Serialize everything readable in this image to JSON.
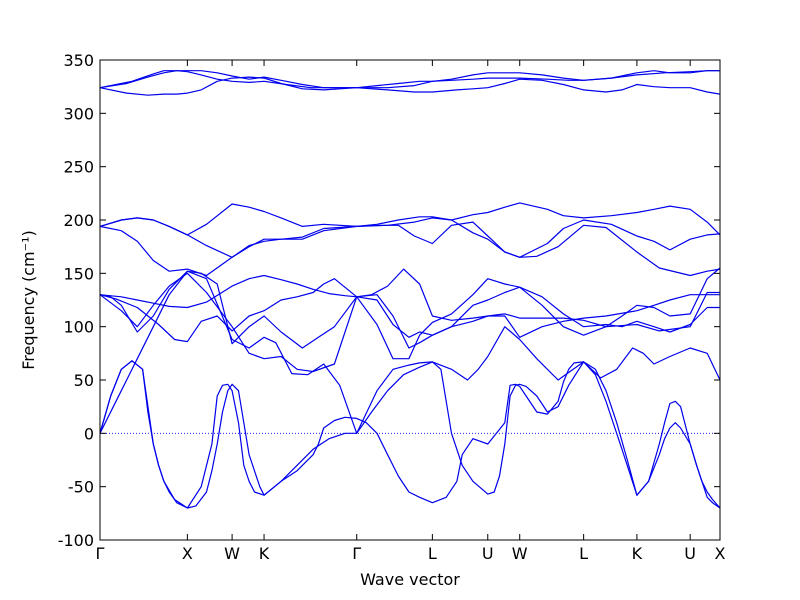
{
  "chart_data": {
    "type": "line",
    "title": "",
    "xlabel": "Wave vector",
    "ylabel": "Frequency (cm⁻¹)",
    "ylim": [
      -100,
      350
    ],
    "xlim": [
      0,
      5.82
    ],
    "yticks": [
      -100,
      -50,
      0,
      50,
      100,
      150,
      200,
      250,
      300,
      350
    ],
    "xticks": [
      {
        "label": "Γ",
        "x": 0
      },
      {
        "label": "X",
        "x": 0.82
      },
      {
        "label": "W",
        "x": 1.24
      },
      {
        "label": "K",
        "x": 1.54
      },
      {
        "label": "Γ",
        "x": 2.41
      },
      {
        "label": "L",
        "x": 3.12
      },
      {
        "label": "U",
        "x": 3.64
      },
      {
        "label": "W",
        "x": 3.94
      },
      {
        "label": "L",
        "x": 4.54
      },
      {
        "label": "K",
        "x": 5.04
      },
      {
        "label": "U",
        "x": 5.54
      },
      {
        "label": "X",
        "x": 5.82
      }
    ],
    "zero_line": true,
    "grid": false,
    "line_color": "#0000ee",
    "zero_line_color": "#0000ee",
    "series": [
      {
        "x": [
          0,
          0.3,
          0.5,
          0.6,
          0.72,
          0.82,
          0.95,
          1.1,
          1.24,
          1.4,
          1.54,
          1.75,
          1.98,
          2.2,
          2.41,
          2.6,
          2.8,
          3.0,
          3.12,
          3.3,
          3.5,
          3.64,
          3.8,
          3.94,
          4.2,
          4.4,
          4.54,
          4.8,
          5.04,
          5.3,
          5.54,
          5.7,
          5.82
        ],
        "y": [
          324,
          330,
          337,
          340,
          340,
          339,
          336,
          332,
          330,
          329,
          330,
          327,
          324,
          324,
          324,
          326,
          328,
          330,
          330,
          331,
          332,
          333,
          333,
          333,
          332,
          331,
          331,
          333,
          336,
          338,
          339,
          340,
          340
        ]
      },
      {
        "x": [
          0,
          0.25,
          0.45,
          0.6,
          0.72,
          0.82,
          0.95,
          1.1,
          1.24,
          1.4,
          1.54,
          1.7,
          1.9,
          2.1,
          2.41,
          2.7,
          2.95,
          3.12,
          3.3,
          3.5,
          3.64,
          3.8,
          3.94,
          4.15,
          4.35,
          4.54,
          4.8,
          5.04,
          5.2,
          5.35,
          5.54,
          5.7,
          5.82
        ],
        "y": [
          324,
          328,
          334,
          338,
          340,
          340,
          340,
          338,
          335,
          332,
          334,
          331,
          327,
          324,
          324,
          324,
          326,
          330,
          332,
          336,
          338,
          338,
          338,
          336,
          333,
          331,
          333,
          338,
          340,
          338,
          338,
          340,
          340
        ]
      },
      {
        "x": [
          0,
          0.25,
          0.45,
          0.6,
          0.72,
          0.82,
          0.95,
          1.1,
          1.24,
          1.4,
          1.54,
          1.7,
          1.9,
          2.1,
          2.41,
          2.7,
          2.95,
          3.12,
          3.35,
          3.5,
          3.64,
          3.8,
          3.94,
          4.15,
          4.35,
          4.54,
          4.75,
          4.9,
          5.04,
          5.2,
          5.35,
          5.54,
          5.7,
          5.82
        ],
        "y": [
          324,
          319,
          317,
          318,
          318,
          319,
          322,
          330,
          333,
          334,
          333,
          328,
          323,
          322,
          324,
          322,
          320,
          320,
          322,
          323,
          324,
          328,
          332,
          331,
          327,
          322,
          320,
          322,
          327,
          325,
          324,
          324,
          320,
          318
        ]
      },
      {
        "x": [
          0,
          0.2,
          0.35,
          0.5,
          0.65,
          0.82,
          1.0,
          1.24,
          1.4,
          1.54,
          1.7,
          1.9,
          2.1,
          2.41,
          2.6,
          2.8,
          3.0,
          3.12,
          3.3,
          3.5,
          3.64,
          3.8,
          3.94,
          4.2,
          4.35,
          4.54,
          4.8,
          5.04,
          5.2,
          5.35,
          5.54,
          5.7,
          5.82
        ],
        "y": [
          194,
          200,
          202,
          200,
          194,
          186,
          196,
          215,
          212,
          208,
          202,
          194,
          196,
          194,
          196,
          200,
          203,
          203,
          200,
          205,
          207,
          212,
          216,
          210,
          204,
          202,
          204,
          207,
          210,
          213,
          210,
          198,
          186
        ]
      },
      {
        "x": [
          0,
          0.2,
          0.35,
          0.5,
          0.65,
          0.82,
          1.0,
          1.24,
          1.4,
          1.54,
          1.7,
          1.9,
          2.1,
          2.41,
          2.7,
          2.95,
          3.12,
          3.3,
          3.5,
          3.64,
          3.8,
          3.94,
          4.2,
          4.35,
          4.54,
          4.8,
          5.04,
          5.2,
          5.35,
          5.54,
          5.7,
          5.82
        ],
        "y": [
          194,
          200,
          202,
          200,
          194,
          186,
          176,
          165,
          175,
          182,
          182,
          184,
          192,
          194,
          195,
          198,
          202,
          200,
          188,
          182,
          170,
          165,
          178,
          192,
          200,
          196,
          185,
          180,
          172,
          182,
          186,
          187
        ]
      },
      {
        "x": [
          0,
          0.2,
          0.35,
          0.5,
          0.65,
          0.82,
          1.0,
          1.24,
          1.4,
          1.54,
          1.7,
          1.9,
          2.1,
          2.41,
          2.6,
          2.8,
          2.95,
          3.12,
          3.3,
          3.5,
          3.64,
          3.8,
          3.94,
          4.1,
          4.3,
          4.54,
          4.75,
          5.04,
          5.25,
          5.54,
          5.7,
          5.82
        ],
        "y": [
          194,
          190,
          180,
          162,
          152,
          154,
          148,
          165,
          176,
          180,
          182,
          182,
          190,
          194,
          195,
          195,
          185,
          178,
          195,
          198,
          185,
          170,
          165,
          166,
          175,
          195,
          193,
          170,
          155,
          148,
          152,
          154
        ]
      },
      {
        "x": [
          0,
          0.2,
          0.35,
          0.5,
          0.65,
          0.82,
          1.0,
          1.24,
          1.4,
          1.54,
          1.7,
          1.85,
          2.0,
          2.15,
          2.3,
          2.41,
          2.55,
          2.7,
          2.85,
          3.0,
          3.12,
          3.3,
          3.5,
          3.64,
          3.8,
          3.94,
          4.15,
          4.35,
          4.54,
          4.75,
          5.04,
          5.25,
          5.54,
          5.7,
          5.82
        ],
        "y": [
          130,
          128,
          125,
          122,
          119,
          118,
          123,
          138,
          145,
          148,
          144,
          140,
          135,
          131,
          129,
          128,
          130,
          138,
          154,
          140,
          110,
          106,
          108,
          110,
          112,
          108,
          108,
          108,
          106,
          100,
          102,
          96,
          100,
          132,
          132
        ]
      },
      {
        "x": [
          0,
          0.15,
          0.35,
          0.55,
          0.7,
          0.82,
          0.95,
          1.1,
          1.24,
          1.4,
          1.54,
          1.7,
          1.85,
          2.0,
          2.1,
          2.2,
          2.41,
          2.6,
          2.75,
          2.9,
          3.0,
          3.12,
          3.3,
          3.5,
          3.64,
          3.8,
          3.94,
          4.15,
          4.35,
          4.54,
          4.75,
          5.04,
          5.2,
          5.35,
          5.54,
          5.7,
          5.82
        ],
        "y": [
          130,
          126,
          118,
          102,
          88,
          86,
          105,
          110,
          96,
          110,
          115,
          125,
          128,
          132,
          140,
          145,
          128,
          130,
          110,
          80,
          85,
          92,
          100,
          105,
          110,
          110,
          90,
          100,
          105,
          108,
          110,
          115,
          120,
          125,
          130,
          130,
          130
        ]
      },
      {
        "x": [
          0,
          0.1,
          0.2,
          0.35,
          0.5,
          0.65,
          0.82,
          0.95,
          1.1,
          1.24,
          1.4,
          1.54,
          1.7,
          1.9,
          2.05,
          2.2,
          2.41,
          2.6,
          2.75,
          2.9,
          3.0,
          3.12,
          3.3,
          3.5,
          3.64,
          3.8,
          3.94,
          4.15,
          4.35,
          4.54,
          4.75,
          4.9,
          5.04,
          5.2,
          5.35,
          5.54,
          5.7,
          5.82
        ],
        "y": [
          130,
          128,
          120,
          95,
          110,
          135,
          152,
          150,
          140,
          84,
          100,
          110,
          95,
          80,
          90,
          100,
          128,
          125,
          102,
          90,
          95,
          92,
          100,
          120,
          125,
          132,
          137,
          128,
          112,
          100,
          102,
          100,
          105,
          100,
          95,
          102,
          118,
          118
        ]
      },
      {
        "x": [
          0,
          0.2,
          0.35,
          0.5,
          0.65,
          0.82,
          1.0,
          1.24,
          1.4,
          1.54,
          1.7,
          1.85,
          2.0,
          2.2,
          2.41,
          2.6,
          2.75,
          2.9,
          3.0,
          3.12,
          3.3,
          3.5,
          3.64,
          3.8,
          3.94,
          4.15,
          4.35,
          4.54,
          4.75,
          4.9,
          5.04,
          5.2,
          5.35,
          5.54,
          5.7,
          5.82
        ],
        "y": [
          130,
          115,
          100,
          120,
          138,
          150,
          132,
          100,
          75,
          70,
          72,
          60,
          58,
          65,
          128,
          102,
          70,
          70,
          92,
          104,
          112,
          130,
          145,
          140,
          137,
          120,
          100,
          92,
          100,
          110,
          120,
          118,
          110,
          112,
          145,
          155
        ]
      },
      {
        "x": [
          0,
          0.2,
          0.35,
          0.5,
          0.65,
          0.82,
          1.0,
          1.24,
          1.4,
          1.54,
          1.65,
          1.8,
          1.95,
          2.1,
          2.25,
          2.41,
          2.6,
          2.75,
          2.9,
          3.0,
          3.12,
          3.3,
          3.45,
          3.55,
          3.64,
          3.8,
          3.94,
          4.1,
          4.3,
          4.54,
          4.7,
          4.85,
          5.0,
          5.1,
          5.2,
          5.35,
          5.54,
          5.7,
          5.82
        ],
        "y": [
          0,
          40,
          70,
          100,
          130,
          152,
          145,
          88,
          80,
          90,
          85,
          56,
          55,
          65,
          45,
          0,
          40,
          60,
          64,
          66,
          67,
          60,
          50,
          60,
          72,
          100,
          88,
          70,
          50,
          67,
          52,
          60,
          80,
          75,
          65,
          72,
          80,
          75,
          50
        ]
      },
      {
        "x": [
          0,
          0.1,
          0.2,
          0.3,
          0.4,
          0.5,
          0.55,
          0.6,
          0.65,
          0.72,
          0.82,
          0.95,
          1.05,
          1.1,
          1.15,
          1.2,
          1.24,
          1.3,
          1.35,
          1.4,
          1.45,
          1.54,
          1.7,
          1.85,
          2.0,
          2.05,
          2.1,
          2.2,
          2.3,
          2.41,
          2.5,
          2.6,
          2.7,
          2.8,
          2.9,
          3.0,
          3.12,
          3.25,
          3.35,
          3.4,
          3.5,
          3.64,
          3.8,
          3.85,
          3.9,
          3.94,
          4.0,
          4.1,
          4.2,
          4.3,
          4.35,
          4.4,
          4.45,
          4.54,
          4.65,
          4.75,
          4.9,
          5.04,
          5.15,
          5.25,
          5.3,
          5.35,
          5.4,
          5.45,
          5.54,
          5.6,
          5.65,
          5.7,
          5.75,
          5.82
        ],
        "y": [
          0,
          35,
          60,
          68,
          60,
          -10,
          -30,
          -45,
          -55,
          -65,
          -70,
          -50,
          -10,
          35,
          45,
          46,
          40,
          10,
          -30,
          -45,
          -55,
          -58,
          -45,
          -35,
          -20,
          -10,
          5,
          12,
          15,
          14,
          10,
          0,
          -20,
          -40,
          -55,
          -60,
          -65,
          -60,
          -45,
          -20,
          -5,
          -10,
          10,
          45,
          46,
          44,
          35,
          20,
          18,
          30,
          48,
          60,
          66,
          67,
          55,
          30,
          -15,
          -58,
          -45,
          -10,
          10,
          28,
          30,
          25,
          -10,
          -30,
          -45,
          -60,
          -65,
          -70
        ]
      },
      {
        "x": [
          0,
          0.1,
          0.2,
          0.3,
          0.4,
          0.45,
          0.5,
          0.55,
          0.6,
          0.7,
          0.82,
          0.9,
          1.0,
          1.05,
          1.1,
          1.15,
          1.2,
          1.24,
          1.3,
          1.35,
          1.4,
          1.5,
          1.54,
          1.7,
          1.85,
          2.0,
          2.15,
          2.3,
          2.41,
          2.55,
          2.7,
          2.85,
          3.0,
          3.12,
          3.2,
          3.25,
          3.3,
          3.4,
          3.5,
          3.64,
          3.7,
          3.75,
          3.8,
          3.85,
          3.9,
          3.94,
          4.0,
          4.1,
          4.2,
          4.3,
          4.4,
          4.54,
          4.65,
          4.75,
          4.85,
          4.95,
          5.04,
          5.15,
          5.25,
          5.3,
          5.35,
          5.4,
          5.45,
          5.54,
          5.6,
          5.65,
          5.7,
          5.75,
          5.82
        ],
        "y": [
          0,
          35,
          60,
          68,
          60,
          20,
          -10,
          -30,
          -45,
          -62,
          -70,
          -68,
          -55,
          -35,
          -10,
          20,
          40,
          46,
          40,
          10,
          -20,
          -50,
          -58,
          -45,
          -30,
          -15,
          -5,
          0,
          0,
          20,
          40,
          55,
          62,
          67,
          60,
          30,
          0,
          -30,
          -45,
          -57,
          -55,
          -40,
          -10,
          35,
          45,
          46,
          44,
          35,
          20,
          25,
          45,
          67,
          60,
          40,
          10,
          -25,
          -58,
          -45,
          -20,
          -5,
          5,
          10,
          5,
          -10,
          -30,
          -45,
          -55,
          -62,
          -70
        ]
      }
    ]
  }
}
